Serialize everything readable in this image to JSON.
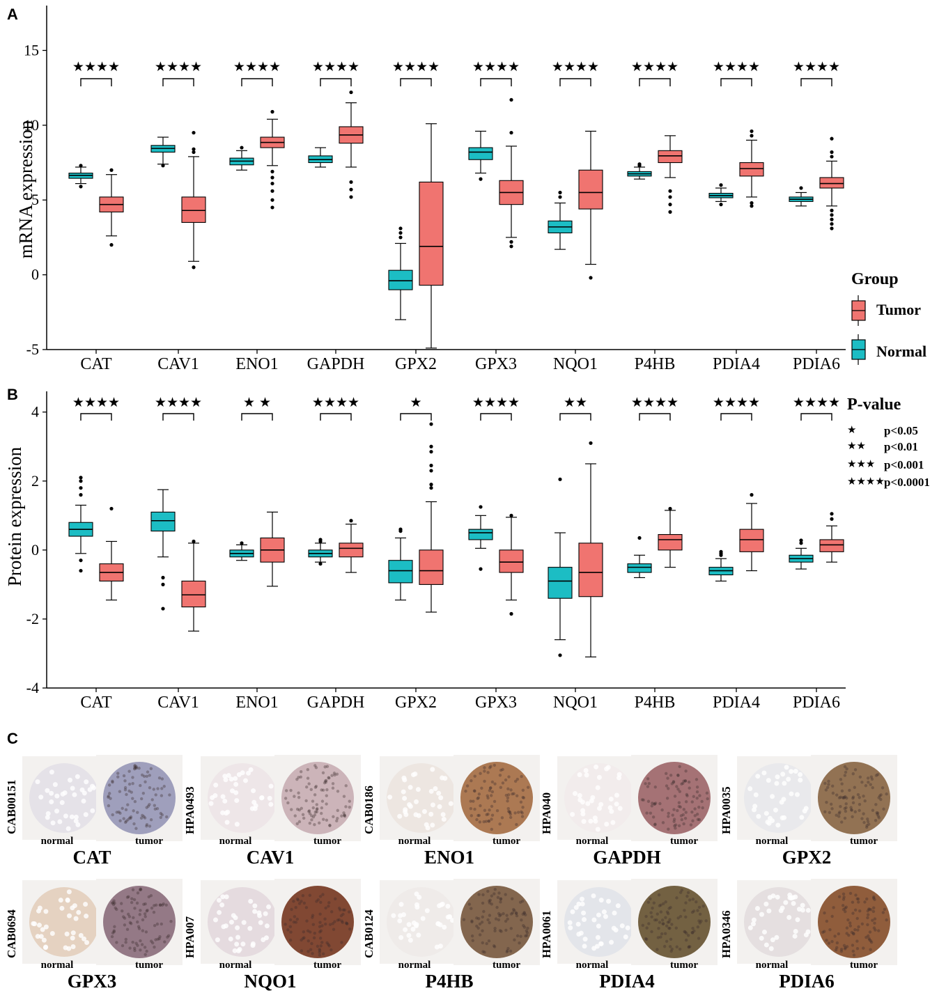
{
  "colors": {
    "tumor": "#f07470",
    "normal": "#1cbdc4",
    "axis": "#000000"
  },
  "chart_data": [
    {
      "type": "boxplot",
      "panel": "A",
      "ylabel": "mRNA expression",
      "xlabel": "",
      "ylim": [
        -5,
        18
      ],
      "yticks": [
        -5,
        0,
        5,
        10,
        15
      ],
      "categories": [
        "CAT",
        "CAV1",
        "ENO1",
        "GAPDH",
        "GPX2",
        "GPX3",
        "NQO1",
        "P4HB",
        "PDIA4",
        "PDIA6"
      ],
      "significance": [
        "****",
        "****",
        "****",
        "****",
        "****",
        "****",
        "****",
        "****",
        "****",
        "****"
      ],
      "series": [
        {
          "name": "Normal",
          "boxes": [
            {
              "min": 6.1,
              "q1": 6.45,
              "median": 6.65,
              "q3": 6.8,
              "max": 7.2,
              "outliers": [
                5.9,
                7.3
              ]
            },
            {
              "min": 7.4,
              "q1": 8.2,
              "median": 8.45,
              "q3": 8.65,
              "max": 9.2,
              "outliers": [
                7.3
              ]
            },
            {
              "min": 7.0,
              "q1": 7.35,
              "median": 7.6,
              "q3": 7.8,
              "max": 8.3,
              "outliers": [
                8.5
              ]
            },
            {
              "min": 7.2,
              "q1": 7.5,
              "median": 7.7,
              "q3": 7.95,
              "max": 8.5,
              "outliers": []
            },
            {
              "min": -3.0,
              "q1": -1.0,
              "median": -0.4,
              "q3": 0.3,
              "max": 2.1,
              "outliers": [
                2.5,
                2.8,
                3.1
              ]
            },
            {
              "min": 6.8,
              "q1": 7.7,
              "median": 8.2,
              "q3": 8.5,
              "max": 9.6,
              "outliers": [
                6.4
              ]
            },
            {
              "min": 1.7,
              "q1": 2.8,
              "median": 3.2,
              "q3": 3.6,
              "max": 4.8,
              "outliers": [
                5.2,
                5.5
              ]
            },
            {
              "min": 6.4,
              "q1": 6.6,
              "median": 6.75,
              "q3": 6.9,
              "max": 7.2,
              "outliers": [
                7.4,
                7.3
              ]
            },
            {
              "min": 4.9,
              "q1": 5.15,
              "median": 5.3,
              "q3": 5.45,
              "max": 5.8,
              "outliers": [
                4.7,
                6.0
              ]
            },
            {
              "min": 4.6,
              "q1": 4.9,
              "median": 5.05,
              "q3": 5.2,
              "max": 5.5,
              "outliers": [
                5.8
              ]
            }
          ]
        },
        {
          "name": "Tumor",
          "boxes": [
            {
              "min": 2.6,
              "q1": 4.2,
              "median": 4.7,
              "q3": 5.2,
              "max": 6.7,
              "outliers": [
                2.0,
                7.0
              ]
            },
            {
              "min": 0.9,
              "q1": 3.5,
              "median": 4.3,
              "q3": 5.2,
              "max": 7.9,
              "outliers": [
                0.5,
                8.2,
                8.4,
                9.5
              ]
            },
            {
              "min": 7.3,
              "q1": 8.5,
              "median": 8.85,
              "q3": 9.2,
              "max": 10.4,
              "outliers": [
                4.5,
                5.0,
                5.6,
                6.1,
                6.5,
                6.9,
                10.9
              ]
            },
            {
              "min": 7.2,
              "q1": 8.8,
              "median": 9.35,
              "q3": 9.9,
              "max": 11.5,
              "outliers": [
                5.2,
                5.7,
                6.2,
                12.2
              ]
            },
            {
              "min": -4.9,
              "q1": -0.7,
              "median": 1.9,
              "q3": 6.2,
              "max": 10.1,
              "outliers": []
            },
            {
              "min": 2.5,
              "q1": 4.7,
              "median": 5.5,
              "q3": 6.3,
              "max": 8.6,
              "outliers": [
                1.9,
                2.2,
                9.5,
                11.7
              ]
            },
            {
              "min": 0.7,
              "q1": 4.4,
              "median": 5.5,
              "q3": 7.0,
              "max": 9.6,
              "outliers": [
                -0.2
              ]
            },
            {
              "min": 6.5,
              "q1": 7.5,
              "median": 7.95,
              "q3": 8.3,
              "max": 9.3,
              "outliers": [
                4.2,
                4.7,
                5.2,
                5.6
              ]
            },
            {
              "min": 5.2,
              "q1": 6.6,
              "median": 7.1,
              "q3": 7.5,
              "max": 9.0,
              "outliers": [
                4.6,
                4.8,
                9.3,
                9.6
              ]
            },
            {
              "min": 4.6,
              "q1": 5.8,
              "median": 6.1,
              "q3": 6.5,
              "max": 7.6,
              "outliers": [
                3.1,
                3.4,
                3.7,
                4.0,
                4.3,
                7.9,
                8.2,
                9.1
              ]
            }
          ]
        }
      ]
    },
    {
      "type": "boxplot",
      "panel": "B",
      "ylabel": "Protein expression",
      "xlabel": "",
      "ylim": [
        -4,
        4.6
      ],
      "yticks": [
        -4,
        -2,
        0,
        2,
        4
      ],
      "categories": [
        "CAT",
        "CAV1",
        "ENO1",
        "GAPDH",
        "GPX2",
        "GPX3",
        "NQO1",
        "P4HB",
        "PDIA4",
        "PDIA6"
      ],
      "significance": [
        "****",
        "****",
        "★ ★",
        "****",
        "*",
        "****",
        "**",
        "****",
        "****",
        "****"
      ],
      "series": [
        {
          "name": "Normal",
          "boxes": [
            {
              "min": -0.1,
              "q1": 0.4,
              "median": 0.6,
              "q3": 0.8,
              "max": 1.3,
              "outliers": [
                -0.6,
                -0.3,
                1.6,
                1.8,
                2.0,
                2.1
              ]
            },
            {
              "min": -0.2,
              "q1": 0.55,
              "median": 0.85,
              "q3": 1.1,
              "max": 1.75,
              "outliers": [
                -0.8,
                -1.0,
                -1.7
              ]
            },
            {
              "min": -0.3,
              "q1": -0.2,
              "median": -0.1,
              "q3": 0.0,
              "max": 0.15,
              "outliers": [
                0.2
              ]
            },
            {
              "min": -0.35,
              "q1": -0.2,
              "median": -0.1,
              "q3": 0.0,
              "max": 0.2,
              "outliers": [
                0.25,
                0.3,
                -0.4
              ]
            },
            {
              "min": -1.45,
              "q1": -0.95,
              "median": -0.6,
              "q3": -0.3,
              "max": 0.35,
              "outliers": [
                0.55,
                0.6
              ]
            },
            {
              "min": 0.05,
              "q1": 0.3,
              "median": 0.5,
              "q3": 0.6,
              "max": 1.0,
              "outliers": [
                1.25,
                -0.55
              ]
            },
            {
              "min": -2.6,
              "q1": -1.4,
              "median": -0.9,
              "q3": -0.5,
              "max": 0.5,
              "outliers": [
                2.05,
                -3.05
              ]
            },
            {
              "min": -0.8,
              "q1": -0.65,
              "median": -0.5,
              "q3": -0.4,
              "max": -0.15,
              "outliers": [
                0.35
              ]
            },
            {
              "min": -0.9,
              "q1": -0.72,
              "median": -0.6,
              "q3": -0.5,
              "max": -0.25,
              "outliers": [
                -0.05,
                -0.1,
                -0.15
              ]
            },
            {
              "min": -0.55,
              "q1": -0.35,
              "median": -0.25,
              "q3": -0.15,
              "max": 0.05,
              "outliers": [
                0.2,
                0.28
              ]
            }
          ]
        },
        {
          "name": "Tumor",
          "boxes": [
            {
              "min": -1.45,
              "q1": -0.9,
              "median": -0.65,
              "q3": -0.4,
              "max": 0.25,
              "outliers": [
                1.2
              ]
            },
            {
              "min": -2.35,
              "q1": -1.65,
              "median": -1.3,
              "q3": -0.9,
              "max": 0.2,
              "outliers": [
                0.25
              ]
            },
            {
              "min": -1.05,
              "q1": -0.35,
              "median": 0.0,
              "q3": 0.35,
              "max": 1.1,
              "outliers": []
            },
            {
              "min": -0.65,
              "q1": -0.2,
              "median": 0.05,
              "q3": 0.2,
              "max": 0.75,
              "outliers": [
                0.85
              ]
            },
            {
              "min": -1.8,
              "q1": -1.0,
              "median": -0.6,
              "q3": 0.0,
              "max": 1.4,
              "outliers": [
                1.8,
                1.9,
                2.3,
                2.45,
                2.85,
                3.0,
                3.65
              ]
            },
            {
              "min": -1.45,
              "q1": -0.65,
              "median": -0.35,
              "q3": 0.0,
              "max": 0.95,
              "outliers": [
                -1.85,
                1.0
              ]
            },
            {
              "min": -3.1,
              "q1": -1.35,
              "median": -0.65,
              "q3": 0.2,
              "max": 2.5,
              "outliers": [
                3.1
              ]
            },
            {
              "min": -0.5,
              "q1": 0.0,
              "median": 0.3,
              "q3": 0.45,
              "max": 1.15,
              "outliers": [
                1.2
              ]
            },
            {
              "min": -0.6,
              "q1": -0.05,
              "median": 0.3,
              "q3": 0.6,
              "max": 1.35,
              "outliers": [
                1.6
              ]
            },
            {
              "min": -0.35,
              "q1": -0.05,
              "median": 0.15,
              "q3": 0.3,
              "max": 0.7,
              "outliers": [
                0.9,
                1.05
              ]
            }
          ]
        }
      ]
    }
  ],
  "panelA": {
    "letter": "A",
    "legend_title": "Group",
    "legend_tumor": "Tumor",
    "legend_normal": "Normal"
  },
  "panelB": {
    "letter": "B",
    "pvalue_title": "P-value",
    "pvalue_items": [
      {
        "stars": "★",
        "label": "p<0.05"
      },
      {
        "stars": "★★",
        "label": "p<0.01"
      },
      {
        "stars": "★★★",
        "label": "p<0.001"
      },
      {
        "stars": "★★★★",
        "label": "p<0.0001"
      }
    ]
  },
  "panelC": {
    "letter": "C",
    "normal_label": "normal",
    "tumor_label": "tumor",
    "samples": [
      {
        "gene": "CAT",
        "antibody": "CAB00151",
        "normal_tone": "#d8d5e2",
        "tumor_tone": "#9a9ab8"
      },
      {
        "gene": "CAV1",
        "antibody": "HPA0493",
        "normal_tone": "#e9dde2",
        "tumor_tone": "#c9b0b5"
      },
      {
        "gene": "ENO1",
        "antibody": "CAB0186",
        "normal_tone": "#e8ddd6",
        "tumor_tone": "#a8724a"
      },
      {
        "gene": "GAPDH",
        "antibody": "HPA040",
        "normal_tone": "#f0e8ea",
        "tumor_tone": "#a06a6e"
      },
      {
        "gene": "GPX2",
        "antibody": "HPA0035",
        "normal_tone": "#e0e2ea",
        "tumor_tone": "#8c6a4a"
      },
      {
        "gene": "GPX3",
        "antibody": "CAB0694",
        "normal_tone": "#d8b89a",
        "tumor_tone": "#8e7280"
      },
      {
        "gene": "NQO1",
        "antibody": "HPA007",
        "normal_tone": "#d8c8d2",
        "tumor_tone": "#7a3e28"
      },
      {
        "gene": "P4HB",
        "antibody": "CAB0124",
        "normal_tone": "#ebe5e4",
        "tumor_tone": "#7c5e44"
      },
      {
        "gene": "PDIA4",
        "antibody": "HPA0061",
        "normal_tone": "#d5dbe6",
        "tumor_tone": "#6c5838"
      },
      {
        "gene": "PDIA6",
        "antibody": "HPA0346",
        "normal_tone": "#d8d0d4",
        "tumor_tone": "#8a5432"
      }
    ]
  }
}
